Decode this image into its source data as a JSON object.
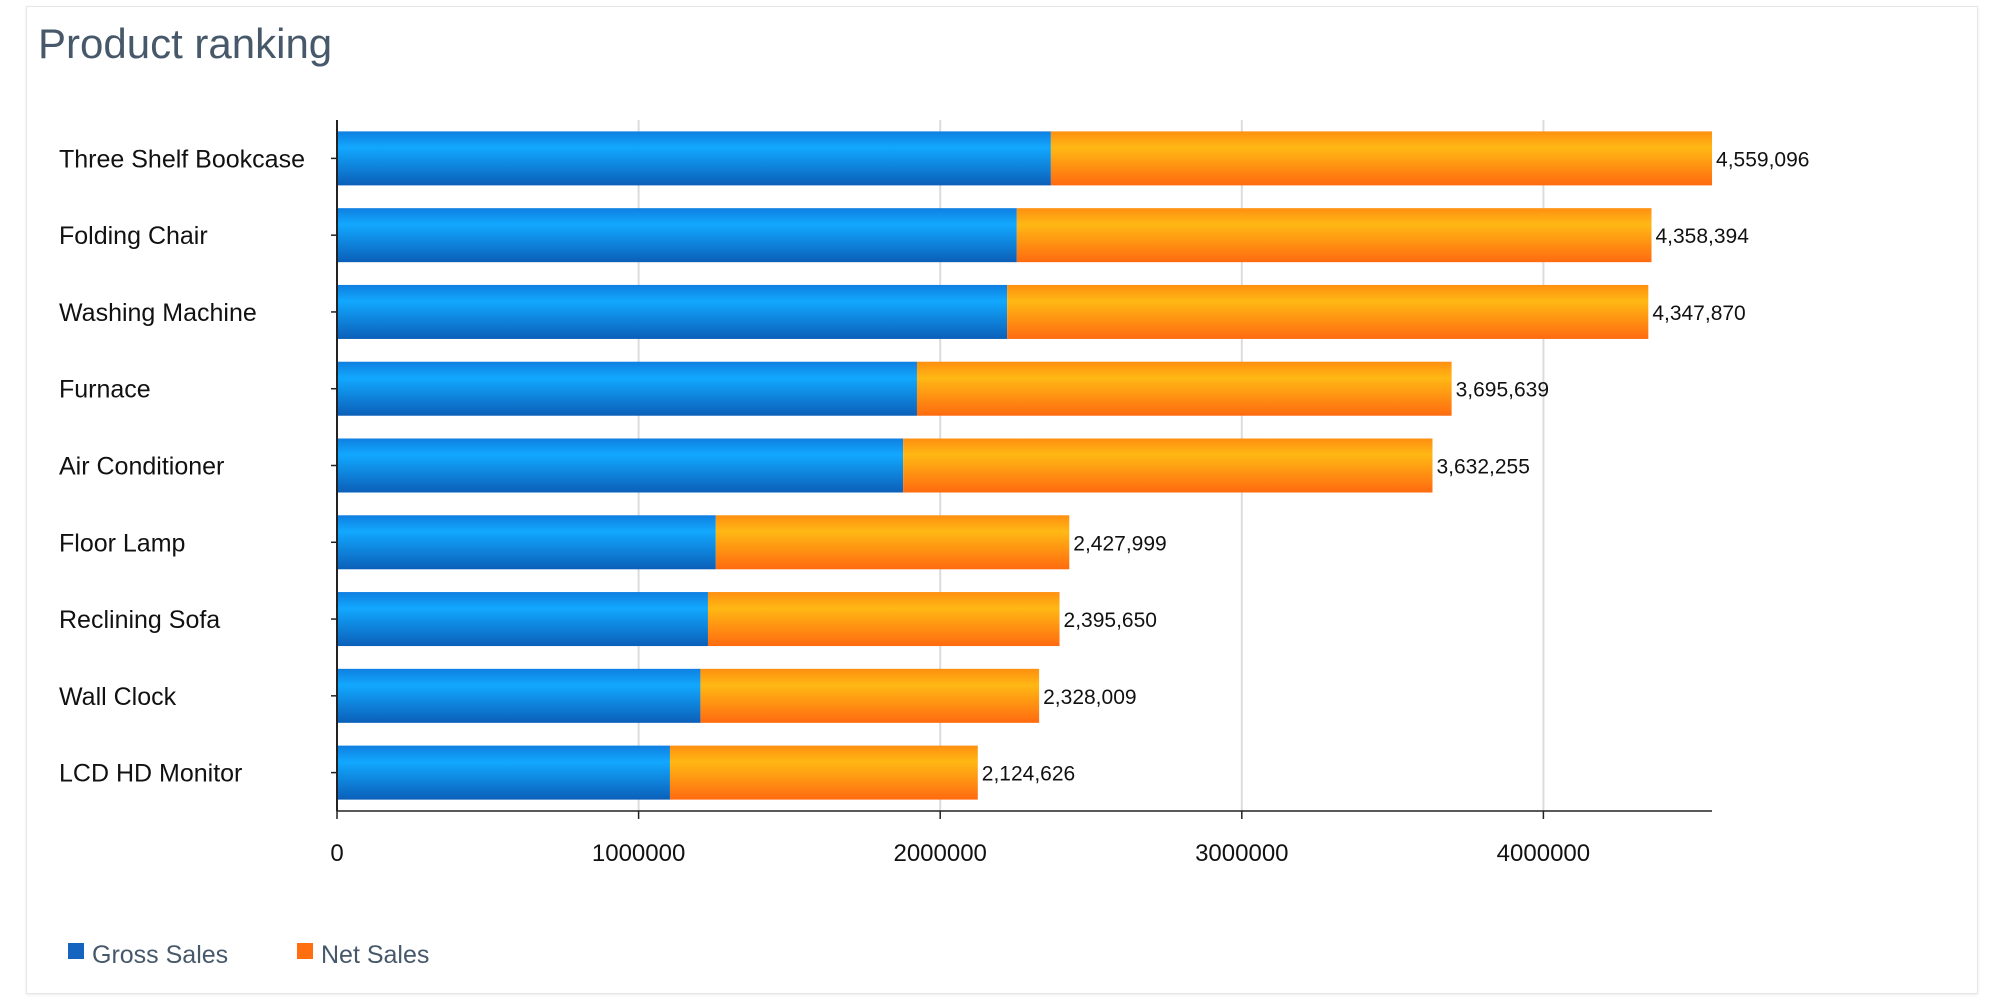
{
  "chart_data": {
    "type": "bar",
    "orientation": "horizontal",
    "stacked": true,
    "title": "Product ranking",
    "categories": [
      "Three Shelf Bookcase",
      "Folding Chair",
      "Washing Machine",
      "Furnace",
      "Air Conditioner",
      "Floor Lamp",
      "Reclining Sofa",
      "Wall Clock",
      "LCD HD Monitor"
    ],
    "series": [
      {
        "name": "Gross Sales",
        "color": "#1565c0",
        "values": [
          2367000,
          2254000,
          2222000,
          1923000,
          1877000,
          1256000,
          1230000,
          1205000,
          1104000
        ]
      },
      {
        "name": "Net Sales",
        "color": "#ff6f0f",
        "values": [
          2192096,
          2104394,
          2125870,
          1772639,
          1755255,
          1171999,
          1165650,
          1123009,
          1020626
        ]
      }
    ],
    "totals": [
      "4,559,096",
      "4,358,394",
      "4,347,870",
      "3,695,639",
      "3,632,255",
      "2,427,999",
      "2,395,650",
      "2,328,009",
      "2,124,626"
    ],
    "xlim": [
      0,
      4559096
    ],
    "xticks": [
      "0",
      "1000000",
      "2000000",
      "3000000",
      "4000000"
    ],
    "xtick_values": [
      0,
      1000000,
      2000000,
      3000000,
      4000000
    ],
    "grid": "vertical",
    "legend": "bottom-left"
  }
}
